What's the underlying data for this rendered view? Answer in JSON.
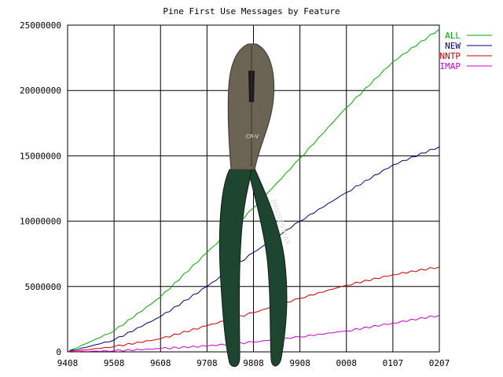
{
  "chart_data": {
    "type": "line",
    "title": "Pine First Use Messages by Feature",
    "xlabel": "",
    "ylabel": "",
    "x": [
      "9408",
      "9508",
      "9608",
      "9708",
      "9808",
      "9908",
      "0008",
      "0107",
      "0207"
    ],
    "ylim": [
      0,
      25000000
    ],
    "yticks": [
      "0",
      "5000000",
      "10000000",
      "15000000",
      "20000000",
      "25000000"
    ],
    "ytick_values": [
      0,
      5000000,
      10000000,
      15000000,
      20000000,
      25000000
    ],
    "grid": true,
    "legend_position": "top-right",
    "series": [
      {
        "name": "ALL",
        "color": "#00aa00",
        "values": [
          0,
          1600000,
          4200000,
          7600000,
          11000000,
          14800000,
          18700000,
          22200000,
          24700000
        ]
      },
      {
        "name": "NEW",
        "color": "#000080",
        "values": [
          0,
          900000,
          2700000,
          5000000,
          7600000,
          10000000,
          12200000,
          14300000,
          15700000
        ]
      },
      {
        "name": "NNTP",
        "color": "#cc0000",
        "values": [
          0,
          400000,
          1000000,
          2000000,
          3000000,
          4100000,
          5100000,
          5900000,
          6500000
        ]
      },
      {
        "name": "IMAP",
        "color": "#cc00cc",
        "values": [
          0,
          80000,
          250000,
          450000,
          750000,
          1150000,
          1600000,
          2200000,
          2800000
        ]
      }
    ]
  },
  "overlay": {
    "icon": "pliers-icon",
    "handle_color": "#1e4530",
    "metal_color": "#6b6455",
    "brand_text": "JONNESWAY",
    "jaw_mark": "CR-V"
  }
}
